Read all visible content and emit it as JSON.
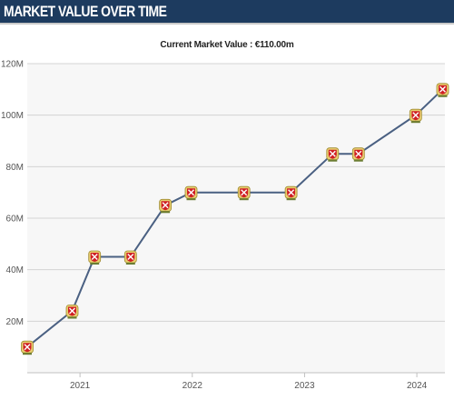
{
  "header": {
    "title": "MARKET VALUE OVER TIME"
  },
  "subtitle": "Current Market Value : €110.00m",
  "chart_data": {
    "type": "line",
    "title": "Current Market Value : €110.00m",
    "xlabel": "",
    "ylabel": "",
    "x_ticks": [
      "2021",
      "2022",
      "2023",
      "2024"
    ],
    "x_tick_years": [
      2021,
      2022,
      2023,
      2024
    ],
    "xlim": [
      2020.53,
      2024.25
    ],
    "y_ticks": [
      {
        "value": 20,
        "label": "20M"
      },
      {
        "value": 40,
        "label": "40M"
      },
      {
        "value": 60,
        "label": "60M"
      },
      {
        "value": 80,
        "label": "80M"
      },
      {
        "value": 100,
        "label": "100M"
      },
      {
        "value": 120,
        "label": "120M"
      }
    ],
    "ylim": [
      0,
      120
    ],
    "grid": true,
    "line_color": "#4a6082",
    "marker_colors": {
      "outer": "#e8d070",
      "shield": "#cf1f24",
      "cross": "#ffffff"
    },
    "series": [
      {
        "x": [
          2020.53,
          2020.93,
          2021.13,
          2021.45,
          2021.76,
          2021.99,
          2022.46,
          2022.88,
          2023.25,
          2023.48,
          2023.99,
          2024.23
        ],
        "y": [
          10,
          24,
          45,
          45,
          65,
          70,
          70,
          70,
          85,
          85,
          100,
          110
        ]
      }
    ]
  }
}
